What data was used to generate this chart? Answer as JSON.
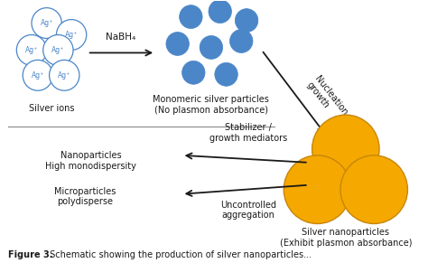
{
  "bg_color": "#ffffff",
  "silver_ion_color": "#ffffff",
  "silver_ion_edge": "#4a86c8",
  "small_particle_color": "#4a86c8",
  "nano_particle_color": "#f5a800",
  "nano_particle_edge": "#c8860a",
  "arrow_color": "#1a1a1a",
  "text_color": "#1a1a1a",
  "label_silver_ions": "Silver ions",
  "label_monomeric": "Monomeric silver particles\n(No plasmon absorbance)",
  "label_nucleation": "Nucleation\ngrowth",
  "label_nanoparticles": "Nanoparticles\nHigh monodispersity",
  "label_microparticles": "Microparticles\npolydisperse",
  "label_stabilizer": "Stabilizer /\ngrowth mediators",
  "label_uncontrolled": "Uncontrolled\naggregation",
  "label_silver_nano": "Silver nanoparticles\n(Exhibit plasmon absorbance)",
  "label_nabh4": "NaBH₄",
  "label_figure": "Figure 3.",
  "label_caption": " Schematic showing the production of silver nanoparticles...",
  "figsize": [
    4.74,
    2.91
  ],
  "dpi": 100
}
